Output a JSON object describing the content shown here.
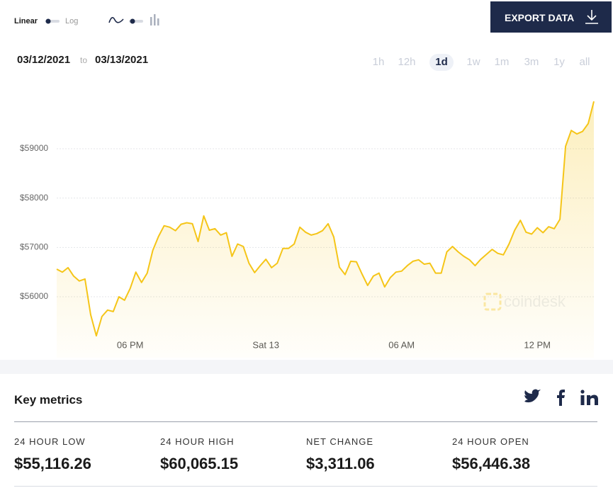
{
  "toolbar": {
    "scale_options": [
      "Linear",
      "Log"
    ],
    "export_button": "EXPORT DATA"
  },
  "date_range": {
    "from": "03/12/2021",
    "separator": "to",
    "to": "03/13/2021"
  },
  "ranges": [
    "1h",
    "12h",
    "1d",
    "1w",
    "1m",
    "3m",
    "1y",
    "all"
  ],
  "selected_range": "1d",
  "chart_data": {
    "type": "area",
    "color": "#f5c518",
    "watermark": "coindesk",
    "values": [
      56560,
      56500,
      56590,
      56420,
      56320,
      56360,
      55640,
      55210,
      55600,
      55730,
      55700,
      56000,
      55930,
      56170,
      56500,
      56290,
      56480,
      56940,
      57220,
      57440,
      57410,
      57340,
      57470,
      57500,
      57480,
      57120,
      57640,
      57350,
      57380,
      57250,
      57300,
      56820,
      57070,
      57020,
      56680,
      56490,
      56630,
      56760,
      56590,
      56680,
      56980,
      56980,
      57070,
      57410,
      57310,
      57250,
      57280,
      57340,
      57480,
      57210,
      56600,
      56450,
      56720,
      56710,
      56460,
      56230,
      56420,
      56480,
      56200,
      56390,
      56500,
      56520,
      56630,
      56720,
      56750,
      56660,
      56680,
      56480,
      56480,
      56910,
      57020,
      56910,
      56820,
      56750,
      56630,
      56760,
      56860,
      56960,
      56880,
      56850,
      57070,
      57350,
      57550,
      57310,
      57270,
      57400,
      57300,
      57420,
      57380,
      57570,
      59050,
      59370,
      59300,
      59350,
      59510,
      59960
    ],
    "xlim": [
      0,
      95
    ],
    "xticks": [
      {
        "value": 13,
        "label": "06 PM"
      },
      {
        "value": 37,
        "label": "Sat 13"
      },
      {
        "value": 61,
        "label": "06 AM"
      },
      {
        "value": 85,
        "label": "12 PM"
      }
    ],
    "ylim": [
      54766,
      60579
    ],
    "yticks": [
      {
        "value": 56000,
        "label": "$56000"
      },
      {
        "value": 57000,
        "label": "$57000"
      },
      {
        "value": 58000,
        "label": "$58000"
      },
      {
        "value": 59000,
        "label": "$59000"
      }
    ],
    "grid": true
  },
  "key_metrics": {
    "title": "Key metrics",
    "metrics": [
      {
        "label": "24 HOUR LOW",
        "value": "$55,116.26"
      },
      {
        "label": "24 HOUR HIGH",
        "value": "$60,065.15"
      },
      {
        "label": "NET CHANGE",
        "value": "$3,311.06"
      },
      {
        "label": "24 HOUR OPEN",
        "value": "$56,446.38"
      }
    ]
  }
}
